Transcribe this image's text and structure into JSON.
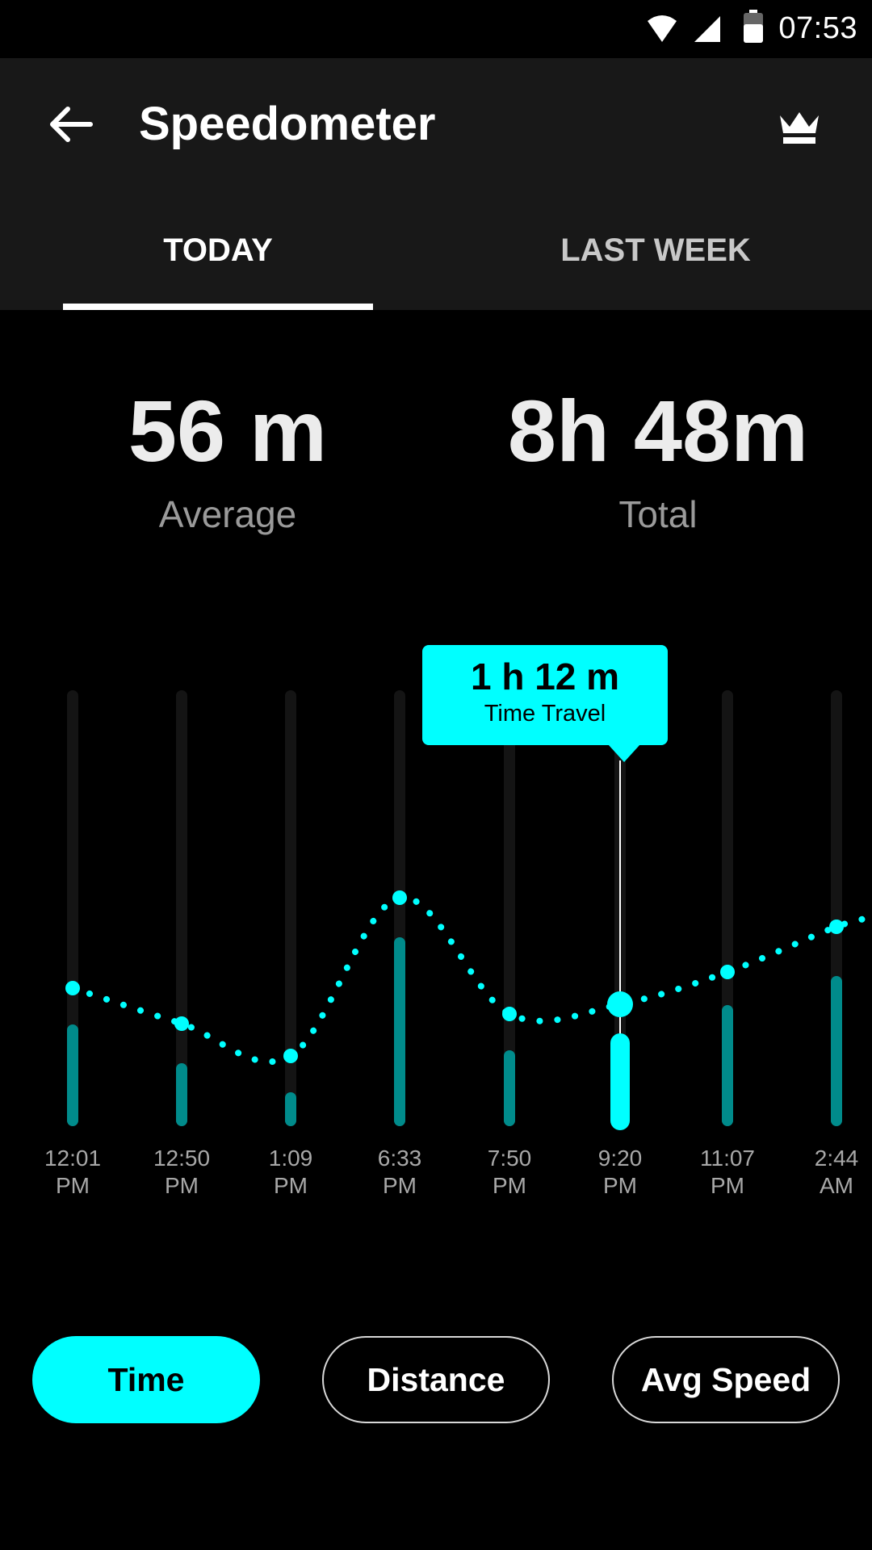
{
  "status_bar": {
    "time": "07:53",
    "icons": [
      "wifi-icon",
      "signal-icon",
      "battery-icon"
    ]
  },
  "app_bar": {
    "title": "Speedometer",
    "back_icon": "arrow-left-icon",
    "premium_icon": "crown-icon"
  },
  "tabs": [
    {
      "label": "TODAY",
      "selected": true
    },
    {
      "label": "LAST WEEK",
      "selected": false
    }
  ],
  "stats": {
    "average": {
      "value": "56 m",
      "label": "Average"
    },
    "total": {
      "value": "8h 48m",
      "label": "Total"
    }
  },
  "tooltip": {
    "value": "1 h 12 m",
    "label": "Time Travel"
  },
  "colors": {
    "accent": "#00ffff",
    "bar": "#008b8b",
    "track": "#141414",
    "appbar": "#181818",
    "background": "#000000"
  },
  "chart_data": {
    "type": "bar",
    "categories": [
      [
        "12:01",
        "PM"
      ],
      [
        "12:50",
        "PM"
      ],
      [
        "1:09",
        "PM"
      ],
      [
        "6:33",
        "PM"
      ],
      [
        "7:50",
        "PM"
      ],
      [
        "9:20",
        "PM"
      ],
      [
        "11:07",
        "PM"
      ],
      [
        "2:44",
        "AM"
      ]
    ],
    "values": [
      0.28,
      0.16,
      0.07,
      0.55,
      0.2,
      0.24,
      0.34,
      0.43
    ],
    "line_values": [
      0.41,
      0.3,
      0.2,
      0.69,
      0.33,
      0.36,
      0.46,
      0.6
    ],
    "selected_index": 5,
    "ylim": [
      0,
      1
    ]
  },
  "filters": [
    {
      "label": "Time",
      "selected": true
    },
    {
      "label": "Distance",
      "selected": false
    },
    {
      "label": "Avg Speed",
      "selected": false
    }
  ]
}
